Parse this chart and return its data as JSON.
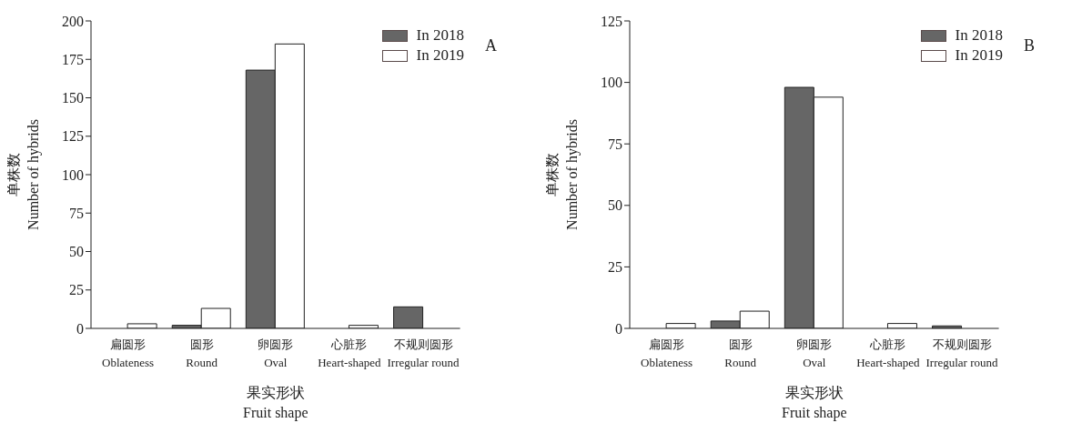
{
  "chart_data": [
    {
      "type": "bar",
      "categories": [
        "扁圆形\nOblateness",
        "圆形\nRound",
        "卵圆形\nOval",
        "心脏形\nHeart-shaped",
        "不规则圆形\nIrregular round"
      ],
      "series": [
        {
          "name": "In 2018",
          "color": "#666666",
          "values": [
            0,
            2,
            168,
            0,
            14
          ]
        },
        {
          "name": "In 2019",
          "color": "#ffffff",
          "values": [
            3,
            13,
            185,
            2,
            0
          ]
        }
      ],
      "xlabel": "果实形状\nFruit shape",
      "ylabel": "单株数\nNumber of hybrids",
      "ylim": [
        0,
        200
      ],
      "yticks": [
        0,
        25,
        50,
        75,
        100,
        125,
        150,
        175,
        200
      ],
      "legend": "top right",
      "annotations": [
        "A"
      ]
    },
    {
      "type": "bar",
      "categories": [
        "扁圆形\nOblateness",
        "圆形\nRound",
        "卵圆形\nOval",
        "心脏形\nHeart-shaped",
        "不规则圆形\nIrregular round"
      ],
      "series": [
        {
          "name": "In 2018",
          "color": "#666666",
          "values": [
            0,
            3,
            98,
            0,
            1
          ]
        },
        {
          "name": "In 2019",
          "color": "#ffffff",
          "values": [
            2,
            7,
            94,
            2,
            0
          ]
        }
      ],
      "xlabel": "果实形状\nFruit shape",
      "ylabel": "单株数\nNumber of hybrids",
      "ylim": [
        0,
        125
      ],
      "yticks": [
        0,
        25,
        50,
        75,
        100,
        125
      ],
      "legend": "top right",
      "annotations": [
        "B"
      ]
    }
  ]
}
